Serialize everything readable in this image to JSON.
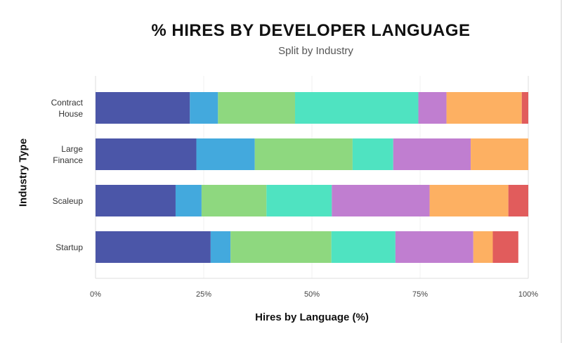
{
  "colors": {
    "palette": [
      "#4b56a8",
      "#43a9dd",
      "#8ed87f",
      "#4fe3c1",
      "#c07ed0",
      "#fdb062",
      "#e15c5c"
    ],
    "axis": "#dddddd",
    "grid": "#f2f2f2"
  },
  "chart_data": {
    "type": "bar",
    "orientation": "horizontal",
    "stacked": true,
    "title": "% HIRES BY DEVELOPER LANGUAGE",
    "subtitle": "Split by Industry",
    "xlabel": "Hires by Language (%)",
    "ylabel": "Industry Type",
    "xlim": [
      0,
      100
    ],
    "xticks": [
      "0%",
      "25%",
      "50%",
      "75%",
      "100%"
    ],
    "xtick_values": [
      0,
      25,
      50,
      75,
      100
    ],
    "legend": "none",
    "categories": [
      {
        "label_lines": [
          "Contract",
          "House"
        ]
      },
      {
        "label_lines": [
          "Large",
          "Finance"
        ]
      },
      {
        "label_lines": [
          "Scaleup"
        ]
      },
      {
        "label_lines": [
          "Startup"
        ]
      }
    ],
    "series": [
      {
        "color": "#4b56a8",
        "values": [
          21.8,
          23.3,
          18.5,
          26.6
        ]
      },
      {
        "color": "#43a9dd",
        "values": [
          6.5,
          13.5,
          6.0,
          4.6
        ]
      },
      {
        "color": "#8ed87f",
        "values": [
          17.8,
          22.6,
          15.0,
          23.3
        ]
      },
      {
        "color": "#4fe3c1",
        "values": [
          28.5,
          9.4,
          15.1,
          14.8
        ]
      },
      {
        "color": "#c07ed0",
        "values": [
          6.5,
          17.9,
          22.6,
          18.0
        ]
      },
      {
        "color": "#fdb062",
        "values": [
          17.4,
          13.3,
          18.2,
          4.5
        ]
      },
      {
        "color": "#e15c5c",
        "values": [
          1.5,
          0.0,
          4.6,
          5.9
        ]
      }
    ]
  }
}
